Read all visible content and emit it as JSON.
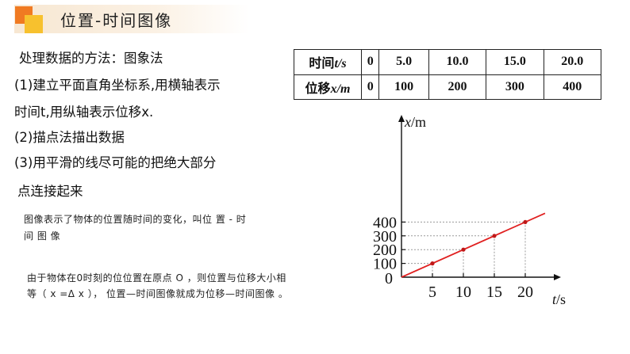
{
  "header": {
    "title": "位置-时间图像"
  },
  "method": {
    "heading": "处理数据的方法：图象法",
    "step1_line1": "(1)建立平面直角坐标系,用横轴表示",
    "step1_line2": "时间t,用纵轴表示位移x.",
    "step2": "(2)描点法描出数据",
    "step3_line1": "(3)用平滑的线尽可能的把绝大部分",
    "step3_line2": "点连接起来"
  },
  "notes": {
    "note1_line1": "图像表示了物体的位置随时间的变化，叫位 置 - 时",
    "note1_line2": "间 图 像",
    "note2_line1": "由于物体在0时刻的位位置在原点 O ，则位置与位移大小相",
    "note2_line2": "等（  x =Δ x ）， 位置—时间图像就成为位移—时间图像 。"
  },
  "table": {
    "row1_label": "时间",
    "row1_var": "t/s",
    "row1_values": [
      "0",
      "5.0",
      "10.0",
      "15.0",
      "20.0"
    ],
    "row2_label": "位移",
    "row2_var": "x/m",
    "row2_values": [
      "0",
      "100",
      "200",
      "300",
      "400"
    ]
  },
  "chart_data": {
    "type": "line",
    "xlabel_var": "t",
    "xlabel_unit": "/s",
    "ylabel_var": "x",
    "ylabel_unit": "/m",
    "origin_label": "0",
    "xticks": [
      "5",
      "10",
      "15",
      "20"
    ],
    "yticks": [
      "100",
      "200",
      "300",
      "400"
    ],
    "points": [
      {
        "x": 5,
        "y": 100
      },
      {
        "x": 10,
        "y": 200
      },
      {
        "x": 15,
        "y": 300
      },
      {
        "x": 20,
        "y": 400
      }
    ],
    "xlim": [
      0,
      20
    ],
    "ylim": [
      0,
      400
    ],
    "line_color": "#e02020",
    "point_color": "#c01818",
    "grid": "dashed guides to points"
  }
}
